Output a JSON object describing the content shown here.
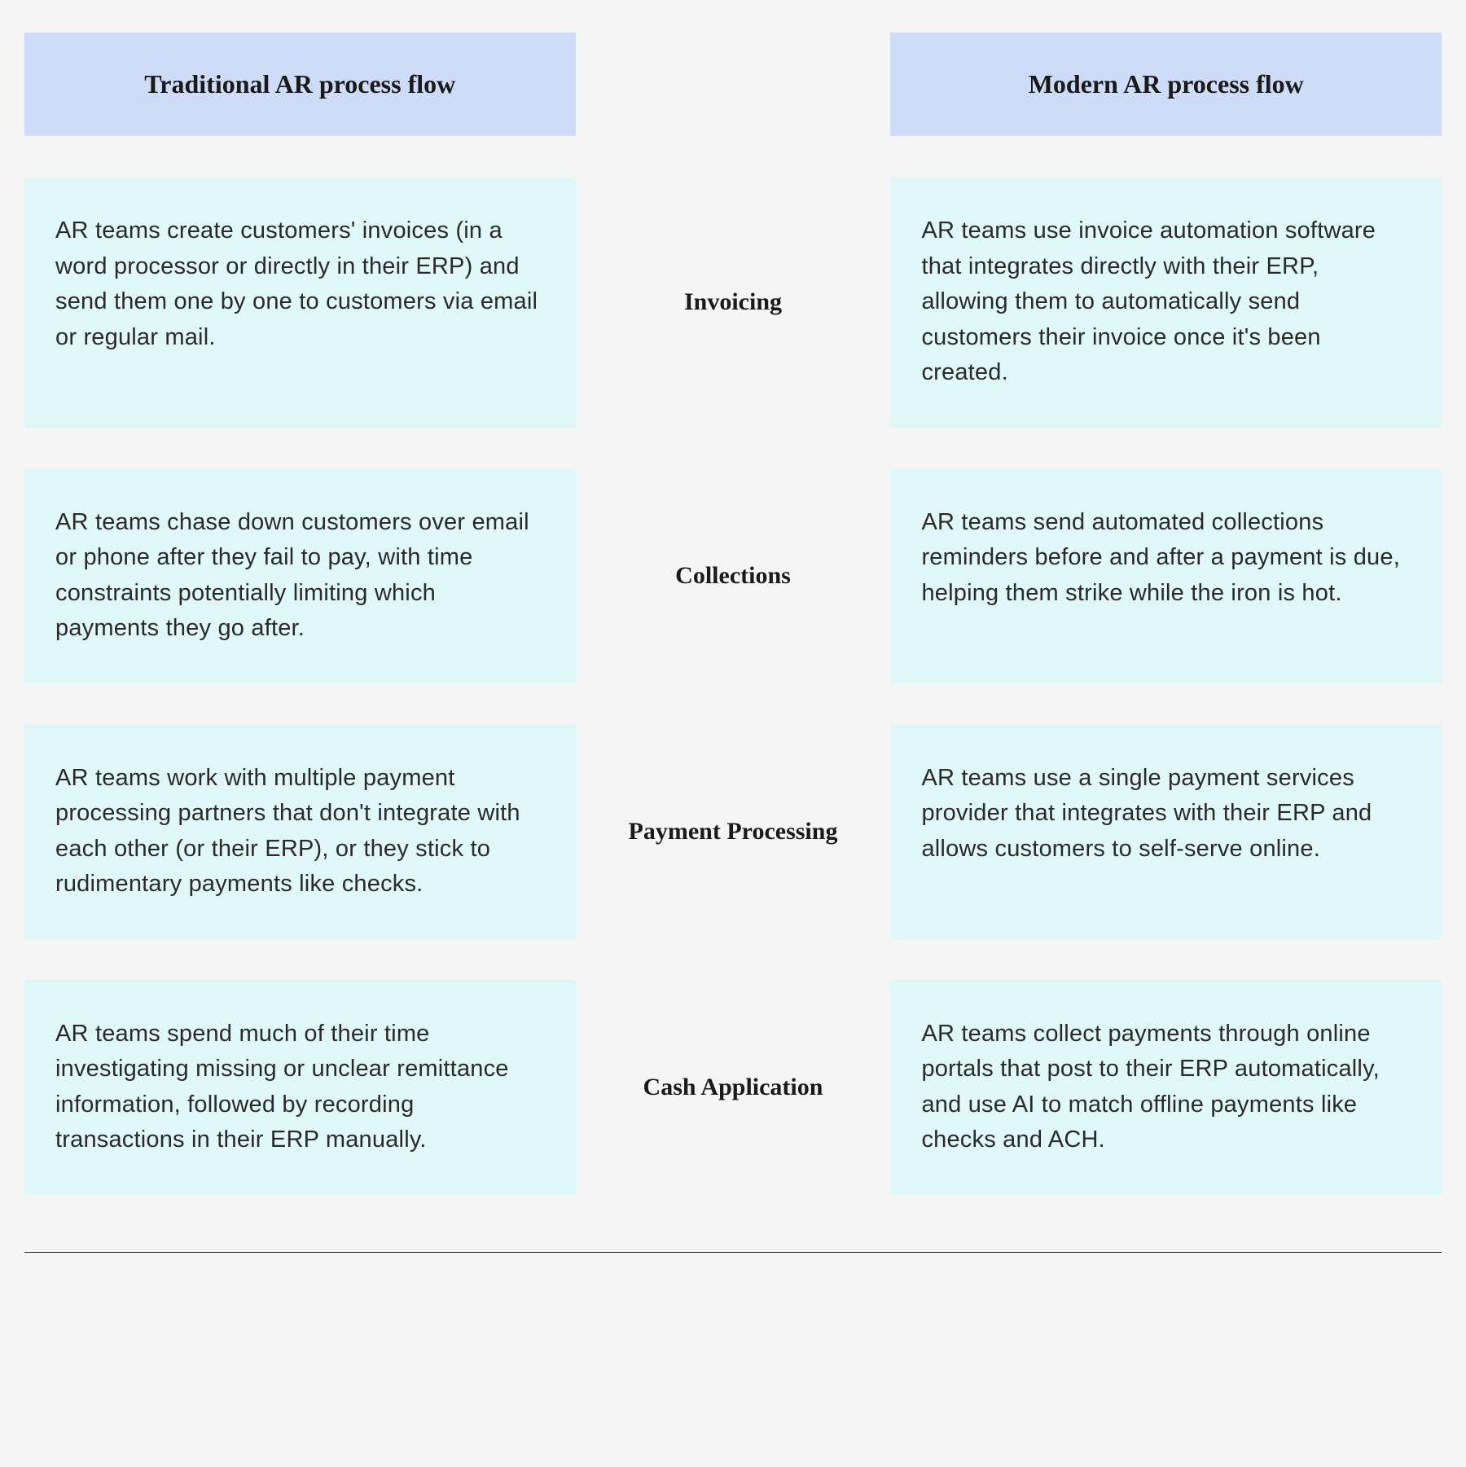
{
  "headers": {
    "traditional": "Traditional AR process flow",
    "modern": "Modern AR process flow"
  },
  "rows": [
    {
      "category": "Invoicing",
      "traditional": "AR teams create customers' invoices (in a word processor or directly in their ERP) and send them one by one to customers via email or regular mail.",
      "modern": "AR teams use invoice automation software that integrates directly with their ERP, allowing them to automatically send customers their invoice once it's been created."
    },
    {
      "category": "Collections",
      "traditional": "AR teams chase down customers over email or phone after they fail to pay, with time constraints potentially limiting which payments they go after.",
      "modern": "AR teams send automated collections reminders before and after a payment is due, helping them strike while the iron is hot."
    },
    {
      "category": "Payment Processing",
      "traditional": "AR teams work with multiple payment processing partners that don't integrate with each other (or their ERP), or they stick to rudimentary payments like checks.",
      "modern": "AR teams use a single payment services provider that integrates with their ERP and allows customers to self-serve online."
    },
    {
      "category": "Cash Application",
      "traditional": "AR teams spend much of their time investigating missing or unclear remittance information, followed by recording transactions in their ERP manually.",
      "modern": "AR teams collect payments through online portals that post to their ERP automatically, and use AI to match offline payments like checks and ACH."
    }
  ],
  "styling": {
    "type": "table",
    "background_color": "#f5f5f5",
    "header_bg_color": "#cfdcf8",
    "cell_bg_color": "#e0f8f8",
    "header_font": "serif",
    "header_fontsize": 32,
    "header_fontweight": "bold",
    "body_fontsize": 29,
    "category_fontsize": 30,
    "category_font": "serif",
    "category_fontweight": "bold",
    "text_color": "#1a1a1a",
    "body_text_color": "#2a2a2a",
    "grid_gap_row": 50,
    "grid_gap_col": 40,
    "columns": 3,
    "content_rows": 4
  }
}
